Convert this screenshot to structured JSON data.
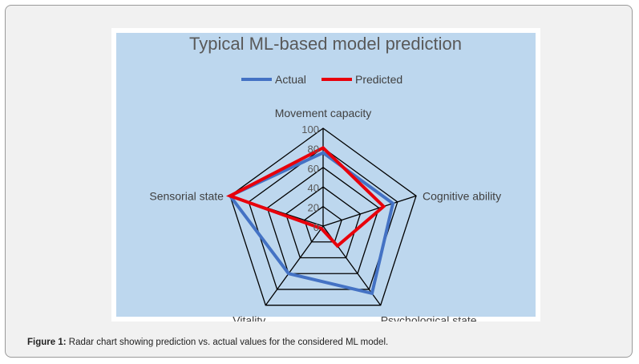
{
  "figure": {
    "caption_label": "Figure 1:",
    "caption_text": " Radar chart showing prediction vs. actual values for the considered ML model."
  },
  "chart_data": {
    "type": "radar",
    "title": "Typical ML-based model prediction",
    "categories": [
      "Movement capacity",
      "Cognitive ability",
      "Psychological state",
      "Vitality",
      "Sensorial state"
    ],
    "ticks": [
      "0",
      "20",
      "40",
      "60",
      "80",
      "100"
    ],
    "rlim": [
      0,
      100
    ],
    "grid": true,
    "legend_position": "top",
    "series": [
      {
        "name": "Actual",
        "color": "#4472c4",
        "values": [
          75,
          75,
          85,
          60,
          100
        ]
      },
      {
        "name": "Predicted",
        "color": "#e8000b",
        "values": [
          80,
          65,
          25,
          3,
          100
        ]
      }
    ],
    "plot_background": "#bdd7ee"
  }
}
